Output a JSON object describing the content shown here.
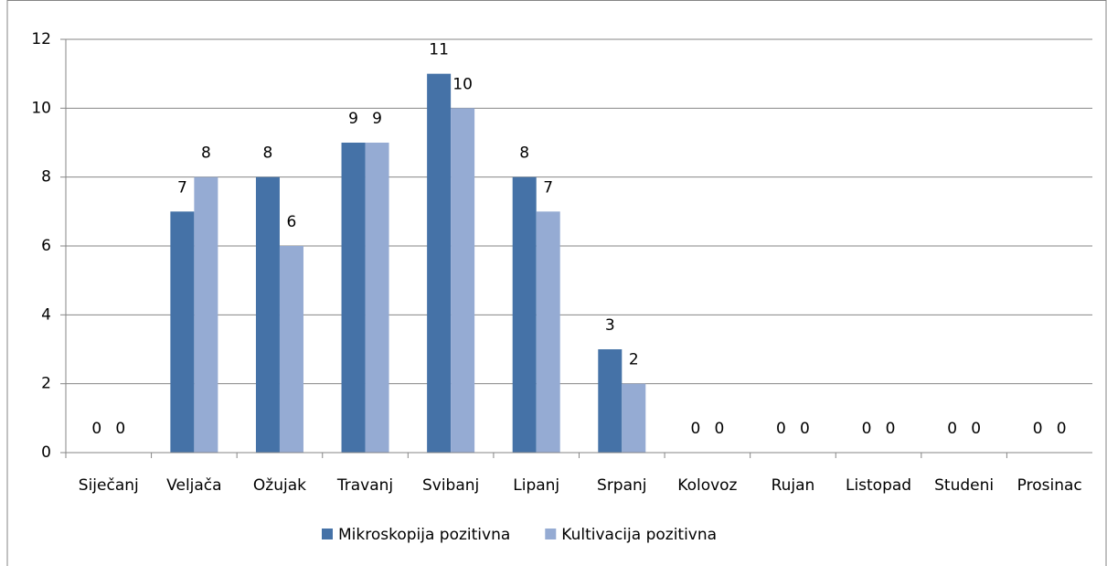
{
  "chart_data": {
    "type": "bar",
    "categories": [
      "Siječanj",
      "Veljača",
      "Ožujak",
      "Travanj",
      "Svibanj",
      "Lipanj",
      "Srpanj",
      "Kolovoz",
      "Rujan",
      "Listopad",
      "Studeni",
      "Prosinac"
    ],
    "series": [
      {
        "name": "Mikroskopija pozitivna",
        "color": "#4572a7",
        "values": [
          0,
          7,
          8,
          9,
          11,
          8,
          3,
          0,
          0,
          0,
          0,
          0
        ]
      },
      {
        "name": "Kultivacija pozitivna",
        "color": "#95abd3",
        "values": [
          0,
          8,
          6,
          9,
          10,
          7,
          2,
          0,
          0,
          0,
          0,
          0
        ]
      }
    ],
    "ylim": [
      0,
      12
    ],
    "yticks": [
      0,
      2,
      4,
      6,
      8,
      10,
      12
    ],
    "grid": true,
    "legend": "bottom"
  }
}
